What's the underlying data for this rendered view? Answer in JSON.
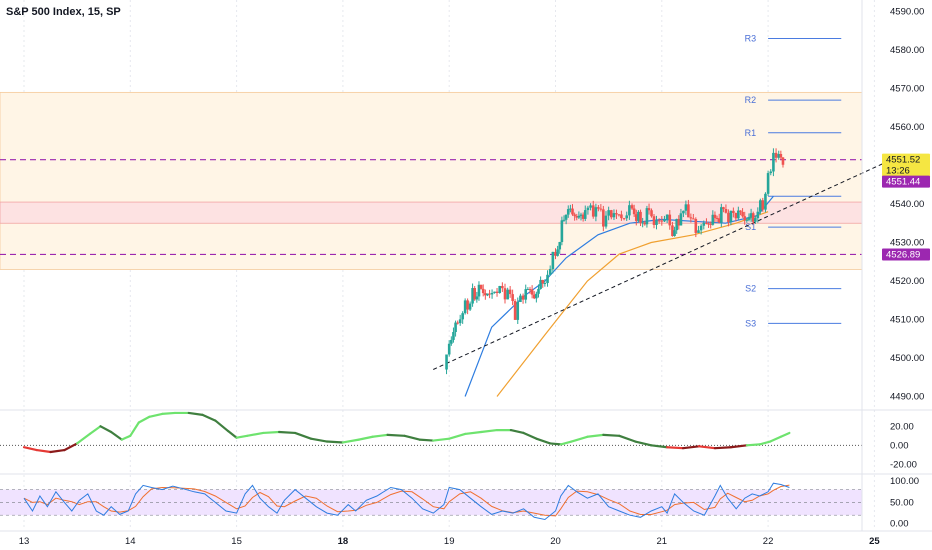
{
  "title": "S&P 500 Index, 15, SP",
  "chart_data": {
    "type": "candlestick",
    "ylim": [
      4487,
      4593
    ],
    "y_ticks": [
      4490,
      4500,
      4510,
      4520,
      4530,
      4540,
      4550,
      4560,
      4570,
      4580,
      4590
    ],
    "x_ticks": [
      {
        "label": "13",
        "x": 0.0,
        "bold": false
      },
      {
        "label": "14",
        "x": 1.0,
        "bold": false
      },
      {
        "label": "15",
        "x": 2.0,
        "bold": false
      },
      {
        "label": "18",
        "x": 3.0,
        "bold": true
      },
      {
        "label": "19",
        "x": 4.0,
        "bold": false
      },
      {
        "label": "20",
        "x": 5.0,
        "bold": false
      },
      {
        "label": "21",
        "x": 6.0,
        "bold": false
      },
      {
        "label": "22",
        "x": 7.0,
        "bold": false
      },
      {
        "label": "25",
        "x": 8.0,
        "bold": true
      }
    ],
    "xlim": [
      -0.06,
      8.3
    ],
    "pivot_levels": [
      {
        "label": "R3",
        "value": 4583.0
      },
      {
        "label": "R2",
        "value": 4567.0
      },
      {
        "label": "R1",
        "value": 4558.5
      },
      {
        "label": "S1",
        "value": 4534.0
      },
      {
        "label": "S2",
        "value": 4518.0
      },
      {
        "label": "S3",
        "value": 4509.0
      }
    ],
    "pivot_x_start": 7.0,
    "pivot_x_end": 7.5,
    "pivot_p": 4542.0,
    "zones": [
      {
        "from": 4523.0,
        "to": 4569.0,
        "color": "#fff5e6"
      },
      {
        "from": 4535.0,
        "to": 4540.5,
        "color": "#fde2e2"
      }
    ],
    "dashed_levels": [
      4551.52,
      4526.89
    ],
    "trendline": {
      "x1": 3.85,
      "y1": 4497.0,
      "x2": 8.2,
      "y2": 4552.0
    },
    "price_badges": [
      {
        "text": "4551.52",
        "sub": "13:26",
        "value": 4551.52,
        "bg": "#f5e642",
        "fg": "#131722"
      },
      {
        "text": "4551.44",
        "value": 4551.44,
        "bg": "#9c27b0",
        "fg": "#ffffff"
      },
      {
        "text": "4526.89",
        "value": 4526.89,
        "bg": "#9c27b0",
        "fg": "#ffffff"
      }
    ],
    "candle_path": [
      [
        3.95,
        4497
      ],
      [
        4.0,
        4503
      ],
      [
        4.08,
        4510
      ],
      [
        4.15,
        4513
      ],
      [
        4.22,
        4516
      ],
      [
        4.3,
        4518
      ],
      [
        4.38,
        4516
      ],
      [
        4.45,
        4518
      ],
      [
        4.55,
        4517
      ],
      [
        4.62,
        4512
      ],
      [
        4.72,
        4518
      ],
      [
        4.8,
        4516
      ],
      [
        4.9,
        4521
      ],
      [
        5.0,
        4527
      ],
      [
        5.08,
        4536
      ],
      [
        5.12,
        4540
      ],
      [
        5.2,
        4536
      ],
      [
        5.28,
        4538
      ],
      [
        5.38,
        4539
      ],
      [
        5.45,
        4536
      ],
      [
        5.55,
        4538
      ],
      [
        5.62,
        4536
      ],
      [
        5.72,
        4539
      ],
      [
        5.8,
        4535
      ],
      [
        5.88,
        4538
      ],
      [
        5.95,
        4535
      ],
      [
        6.05,
        4537
      ],
      [
        6.1,
        4531
      ],
      [
        6.18,
        4538
      ],
      [
        6.25,
        4538
      ],
      [
        6.32,
        4533
      ],
      [
        6.42,
        4535
      ],
      [
        6.5,
        4536
      ],
      [
        6.58,
        4538
      ],
      [
        6.65,
        4537
      ],
      [
        6.72,
        4538
      ],
      [
        6.8,
        4536
      ],
      [
        6.88,
        4537
      ],
      [
        6.95,
        4540
      ],
      [
        7.0,
        4546
      ],
      [
        7.05,
        4552
      ],
      [
        7.1,
        4553
      ],
      [
        7.14,
        4551.5
      ]
    ],
    "ma_fast": [
      [
        4.15,
        4490
      ],
      [
        4.4,
        4508
      ],
      [
        4.7,
        4516
      ],
      [
        4.9,
        4520
      ],
      [
        5.1,
        4526
      ],
      [
        5.4,
        4532
      ],
      [
        5.7,
        4535
      ],
      [
        6.0,
        4536
      ],
      [
        6.3,
        4535.5
      ],
      [
        6.6,
        4535
      ],
      [
        6.9,
        4537
      ],
      [
        7.05,
        4542
      ]
    ],
    "ma_slow": [
      [
        4.45,
        4490
      ],
      [
        4.9,
        4506
      ],
      [
        5.3,
        4520
      ],
      [
        5.6,
        4527
      ],
      [
        5.9,
        4530
      ],
      [
        6.3,
        4532
      ],
      [
        6.7,
        4535
      ],
      [
        7.0,
        4538
      ]
    ],
    "osc1": {
      "ticks": [
        20.0,
        0.0,
        -20.0
      ],
      "ylim": [
        -28,
        35
      ],
      "values": [
        [
          0.0,
          -2
        ],
        [
          0.12,
          -5
        ],
        [
          0.25,
          -7
        ],
        [
          0.38,
          -5
        ],
        [
          0.5,
          2
        ],
        [
          0.62,
          12
        ],
        [
          0.72,
          20
        ],
        [
          0.82,
          14
        ],
        [
          0.92,
          6
        ],
        [
          1.0,
          10
        ],
        [
          1.08,
          24
        ],
        [
          1.18,
          30
        ],
        [
          1.3,
          33
        ],
        [
          1.42,
          34
        ],
        [
          1.55,
          34
        ],
        [
          1.68,
          32
        ],
        [
          1.8,
          26
        ],
        [
          1.92,
          15
        ],
        [
          2.0,
          8
        ],
        [
          2.1,
          10
        ],
        [
          2.25,
          13
        ],
        [
          2.4,
          14
        ],
        [
          2.55,
          13
        ],
        [
          2.7,
          7
        ],
        [
          2.85,
          4
        ],
        [
          3.0,
          3
        ],
        [
          3.15,
          6
        ],
        [
          3.28,
          9
        ],
        [
          3.42,
          11
        ],
        [
          3.58,
          10
        ],
        [
          3.72,
          6
        ],
        [
          3.85,
          5
        ],
        [
          4.0,
          7
        ],
        [
          4.15,
          12
        ],
        [
          4.3,
          14
        ],
        [
          4.45,
          16
        ],
        [
          4.58,
          16
        ],
        [
          4.7,
          13
        ],
        [
          4.82,
          7
        ],
        [
          4.95,
          2
        ],
        [
          5.05,
          1
        ],
        [
          5.15,
          4
        ],
        [
          5.3,
          9
        ],
        [
          5.45,
          11
        ],
        [
          5.6,
          10
        ],
        [
          5.75,
          4
        ],
        [
          5.9,
          0
        ],
        [
          6.05,
          -2
        ],
        [
          6.2,
          -3
        ],
        [
          6.35,
          -1
        ],
        [
          6.5,
          -3
        ],
        [
          6.65,
          -2
        ],
        [
          6.8,
          0
        ],
        [
          6.92,
          1
        ],
        [
          7.02,
          4
        ],
        [
          7.12,
          9
        ],
        [
          7.2,
          13
        ]
      ]
    },
    "osc2": {
      "ticks": [
        100.0,
        50.0,
        0.0
      ],
      "ylim": [
        -10,
        112
      ],
      "band": [
        20,
        80
      ],
      "k": [
        [
          0.0,
          60
        ],
        [
          0.08,
          30
        ],
        [
          0.15,
          65
        ],
        [
          0.22,
          40
        ],
        [
          0.3,
          75
        ],
        [
          0.38,
          50
        ],
        [
          0.45,
          30
        ],
        [
          0.52,
          55
        ],
        [
          0.6,
          70
        ],
        [
          0.68,
          30
        ],
        [
          0.75,
          20
        ],
        [
          0.82,
          40
        ],
        [
          0.9,
          22
        ],
        [
          0.98,
          30
        ],
        [
          1.05,
          70
        ],
        [
          1.12,
          90
        ],
        [
          1.2,
          85
        ],
        [
          1.3,
          80
        ],
        [
          1.4,
          88
        ],
        [
          1.5,
          82
        ],
        [
          1.6,
          75
        ],
        [
          1.7,
          70
        ],
        [
          1.8,
          50
        ],
        [
          1.9,
          30
        ],
        [
          2.0,
          25
        ],
        [
          2.08,
          70
        ],
        [
          2.15,
          90
        ],
        [
          2.22,
          60
        ],
        [
          2.3,
          40
        ],
        [
          2.38,
          25
        ],
        [
          2.45,
          55
        ],
        [
          2.55,
          80
        ],
        [
          2.65,
          60
        ],
        [
          2.75,
          40
        ],
        [
          2.85,
          25
        ],
        [
          2.95,
          20
        ],
        [
          3.05,
          45
        ],
        [
          3.12,
          30
        ],
        [
          3.22,
          55
        ],
        [
          3.32,
          65
        ],
        [
          3.45,
          85
        ],
        [
          3.55,
          80
        ],
        [
          3.65,
          60
        ],
        [
          3.75,
          35
        ],
        [
          3.85,
          25
        ],
        [
          3.95,
          45
        ],
        [
          4.0,
          85
        ],
        [
          4.1,
          80
        ],
        [
          4.2,
          60
        ],
        [
          4.3,
          40
        ],
        [
          4.4,
          22
        ],
        [
          4.5,
          30
        ],
        [
          4.6,
          25
        ],
        [
          4.7,
          35
        ],
        [
          4.8,
          15
        ],
        [
          4.9,
          10
        ],
        [
          5.0,
          30
        ],
        [
          5.05,
          65
        ],
        [
          5.12,
          90
        ],
        [
          5.2,
          75
        ],
        [
          5.3,
          60
        ],
        [
          5.4,
          70
        ],
        [
          5.5,
          40
        ],
        [
          5.6,
          30
        ],
        [
          5.7,
          20
        ],
        [
          5.8,
          15
        ],
        [
          5.9,
          30
        ],
        [
          6.0,
          40
        ],
        [
          6.05,
          25
        ],
        [
          6.12,
          70
        ],
        [
          6.2,
          50
        ],
        [
          6.3,
          30
        ],
        [
          6.4,
          20
        ],
        [
          6.5,
          65
        ],
        [
          6.55,
          90
        ],
        [
          6.62,
          60
        ],
        [
          6.7,
          35
        ],
        [
          6.78,
          60
        ],
        [
          6.85,
          70
        ],
        [
          6.92,
          65
        ],
        [
          7.0,
          75
        ],
        [
          7.05,
          95
        ],
        [
          7.12,
          92
        ],
        [
          7.2,
          85
        ]
      ]
    }
  }
}
